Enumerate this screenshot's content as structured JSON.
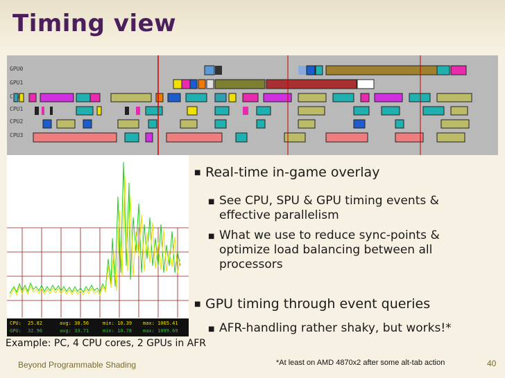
{
  "slide": {
    "title": "Timing view",
    "footer": "Beyond Programmable Shading",
    "page_number": "40",
    "footnote": "*At least on AMD 4870x2 after some alt-tab action",
    "example": "Example: PC, 4 CPU cores, 2 GPUs in AFR"
  },
  "timing_rows": [
    "GPU0",
    "GPU1",
    "CPU0",
    "CPU1",
    "CPU2",
    "CPU3"
  ],
  "graph": {
    "stats": [
      {
        "label": "CPU:",
        "cur": "25.82",
        "avg": "avg: 30.56",
        "min": "min: 10.39",
        "max": "max: 1065.41"
      },
      {
        "label": "GPU:",
        "cur": "32.96",
        "avg": "avg: 33.71",
        "min": "min: 10.78",
        "max": "max: 1099.69"
      }
    ]
  },
  "bullets": [
    {
      "text": "Real-time in-game overlay",
      "level": 1,
      "children": [
        "See CPU, SPU & GPU timing events & effective parallelism",
        "What we use to reduce sync-points & optimize load balancing between all processors"
      ]
    },
    {
      "text": "GPU timing through event queries",
      "level": 1,
      "children": [
        "AFR-handling rather shaky, but works!*"
      ]
    }
  ],
  "colors": {
    "title": "#4b1f5c",
    "footer": "#7a6a2c",
    "timing_bg": "#b9b9b9",
    "marker": "#cc0000"
  }
}
